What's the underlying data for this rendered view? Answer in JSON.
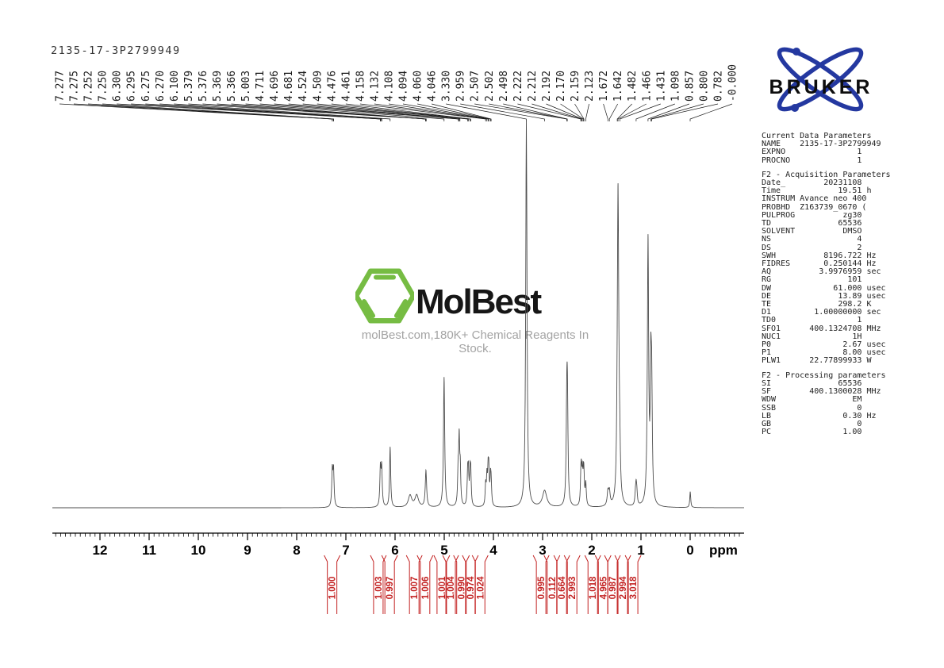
{
  "bruker": {
    "label": "BRUKER"
  },
  "watermark": {
    "brand": "MolBest",
    "tagline": "molBest.com,180K+ Chemical Reagents In Stock."
  },
  "colors": {
    "spectrum": "#4d4d4d",
    "integral": "#c32222",
    "label": "#1a1a1a",
    "axis": "#000000",
    "bruker_blue": "#2438a0",
    "watermark_green": "#76bc43"
  },
  "chart_data": {
    "type": "line",
    "title": "2135-17-3P2799949",
    "xlabel": "ppm",
    "x_range": [
      13,
      -1
    ],
    "grid": false,
    "axis": {
      "unit_label": "ppm",
      "major_ticks": [
        12,
        11,
        10,
        9,
        8,
        7,
        6,
        5,
        4,
        3,
        2,
        1,
        0
      ],
      "minor_step": 0.1
    },
    "peak_list": [
      "7.277",
      "7.275",
      "7.252",
      "7.250",
      "6.300",
      "6.295",
      "6.275",
      "6.270",
      "6.100",
      "5.379",
      "5.376",
      "5.369",
      "5.366",
      "5.003",
      "4.711",
      "4.696",
      "4.681",
      "4.524",
      "4.509",
      "4.476",
      "4.461",
      "4.158",
      "4.132",
      "4.108",
      "4.094",
      "4.060",
      "4.046",
      "3.330",
      "2.959",
      "2.507",
      "2.502",
      "2.498",
      "2.222",
      "2.212",
      "2.192",
      "2.170",
      "2.159",
      "2.123",
      "1.672",
      "1.642",
      "1.482",
      "1.466",
      "1.431",
      "1.098",
      "0.857",
      "0.800",
      "0.782",
      "-0.000"
    ],
    "peaks": [
      [
        7.276,
        45,
        0.8
      ],
      [
        7.251,
        45,
        0.8
      ],
      [
        6.298,
        48,
        0.8
      ],
      [
        6.272,
        48,
        0.8
      ],
      [
        6.1,
        76,
        0.8
      ],
      [
        5.695,
        15,
        2.6
      ],
      [
        5.56,
        15,
        2.6
      ],
      [
        5.372,
        46,
        1.0
      ],
      [
        5.003,
        164,
        0.9
      ],
      [
        4.718,
        40,
        0.7
      ],
      [
        4.696,
        82,
        0.8
      ],
      [
        4.674,
        40,
        0.7
      ],
      [
        4.524,
        38,
        0.7
      ],
      [
        4.509,
        38,
        0.7
      ],
      [
        4.476,
        38,
        0.7
      ],
      [
        4.461,
        38,
        0.7
      ],
      [
        4.158,
        26,
        0.7
      ],
      [
        4.132,
        34,
        0.7
      ],
      [
        4.108,
        38,
        0.7
      ],
      [
        4.094,
        38,
        0.7
      ],
      [
        4.06,
        32,
        0.7
      ],
      [
        4.046,
        26,
        0.7
      ],
      [
        3.33,
        488,
        0.95
      ],
      [
        2.959,
        21,
        3.2
      ],
      [
        2.512,
        52,
        0.7
      ],
      [
        2.502,
        125,
        0.95
      ],
      [
        2.492,
        52,
        0.7
      ],
      [
        2.222,
        28,
        0.7
      ],
      [
        2.212,
        32,
        0.7
      ],
      [
        2.192,
        36,
        0.7
      ],
      [
        2.17,
        30,
        0.7
      ],
      [
        2.159,
        27,
        0.7
      ],
      [
        2.123,
        28,
        0.8
      ],
      [
        1.672,
        17,
        1.1
      ],
      [
        1.642,
        17,
        1.1
      ],
      [
        1.482,
        60,
        0.9
      ],
      [
        1.466,
        356,
        0.95
      ],
      [
        1.448,
        48,
        0.9
      ],
      [
        1.431,
        42,
        0.9
      ],
      [
        1.112,
        13,
        0.8
      ],
      [
        1.098,
        21,
        0.8
      ],
      [
        1.084,
        13,
        0.8
      ],
      [
        0.857,
        332,
        0.95
      ],
      [
        0.8,
        148,
        0.85
      ],
      [
        0.782,
        132,
        0.85
      ],
      [
        -0.002,
        20,
        0.7
      ]
    ],
    "integrals": [
      {
        "value": "1.000",
        "ppm": 7.28
      },
      {
        "value": "1.003",
        "ppm": 6.34
      },
      {
        "value": "0.997",
        "ppm": 6.11
      },
      {
        "value": "1.007",
        "ppm": 5.61
      },
      {
        "value": "1.006",
        "ppm": 5.39
      },
      {
        "value": "1.001",
        "ppm": 5.05
      },
      {
        "value": "1.004",
        "ppm": 4.87
      },
      {
        "value": "0.990",
        "ppm": 4.65
      },
      {
        "value": "0.974",
        "ppm": 4.47
      },
      {
        "value": "1.024",
        "ppm": 4.27
      },
      {
        "value": "0.995",
        "ppm": 3.03
      },
      {
        "value": "0.112",
        "ppm": 2.81
      },
      {
        "value": "0.664",
        "ppm": 2.61
      },
      {
        "value": "2.993",
        "ppm": 2.4
      },
      {
        "value": "1.018",
        "ppm": 1.98
      },
      {
        "value": "4.965",
        "ppm": 1.77
      },
      {
        "value": "0.987",
        "ppm": 1.58
      },
      {
        "value": "2.994",
        "ppm": 1.37
      },
      {
        "value": "3.018",
        "ppm": 1.16
      }
    ]
  },
  "params": {
    "sections": [
      {
        "header": "Current Data Parameters",
        "rows": [
          [
            "NAME",
            "2135-17-3P2799949",
            ""
          ],
          [
            "EXPNO",
            "1",
            ""
          ],
          [
            "PROCNO",
            "1",
            ""
          ]
        ]
      },
      {
        "header": "F2 - Acquisition Parameters",
        "rows": [
          [
            "Date_",
            "20231108",
            ""
          ],
          [
            "Time",
            "19.51",
            "h"
          ],
          [
            "INSTRUM",
            "Avance neo 400",
            ""
          ],
          [
            "PROBHD",
            "Z163739_0670 (",
            ""
          ],
          [
            "PULPROG",
            "zg30",
            ""
          ],
          [
            "TD",
            "65536",
            ""
          ],
          [
            "SOLVENT",
            "DMSO",
            ""
          ],
          [
            "NS",
            "4",
            ""
          ],
          [
            "DS",
            "2",
            ""
          ],
          [
            "SWH",
            "8196.722",
            "Hz"
          ],
          [
            "FIDRES",
            "0.250144",
            "Hz"
          ],
          [
            "AQ",
            "3.9976959",
            "sec"
          ],
          [
            "RG",
            "101",
            ""
          ],
          [
            "DW",
            "61.000",
            "usec"
          ],
          [
            "DE",
            "13.89",
            "usec"
          ],
          [
            "TE",
            "298.2",
            "K"
          ],
          [
            "D1",
            "1.00000000",
            "sec"
          ],
          [
            "TD0",
            "1",
            ""
          ],
          [
            "SFO1",
            "400.1324708",
            "MHz"
          ],
          [
            "NUC1",
            "1H",
            ""
          ],
          [
            "P0",
            "2.67",
            "usec"
          ],
          [
            "P1",
            "8.00",
            "usec"
          ],
          [
            "PLW1",
            "22.77899933",
            "W"
          ]
        ]
      },
      {
        "header": "F2 - Processing parameters",
        "rows": [
          [
            "SI",
            "65536",
            ""
          ],
          [
            "SF",
            "400.1300028",
            "MHz"
          ],
          [
            "WDW",
            "EM",
            ""
          ],
          [
            "SSB",
            "0",
            ""
          ],
          [
            "LB",
            "0.30",
            "Hz"
          ],
          [
            "GB",
            "0",
            ""
          ],
          [
            "PC",
            "1.00",
            ""
          ]
        ]
      }
    ]
  }
}
